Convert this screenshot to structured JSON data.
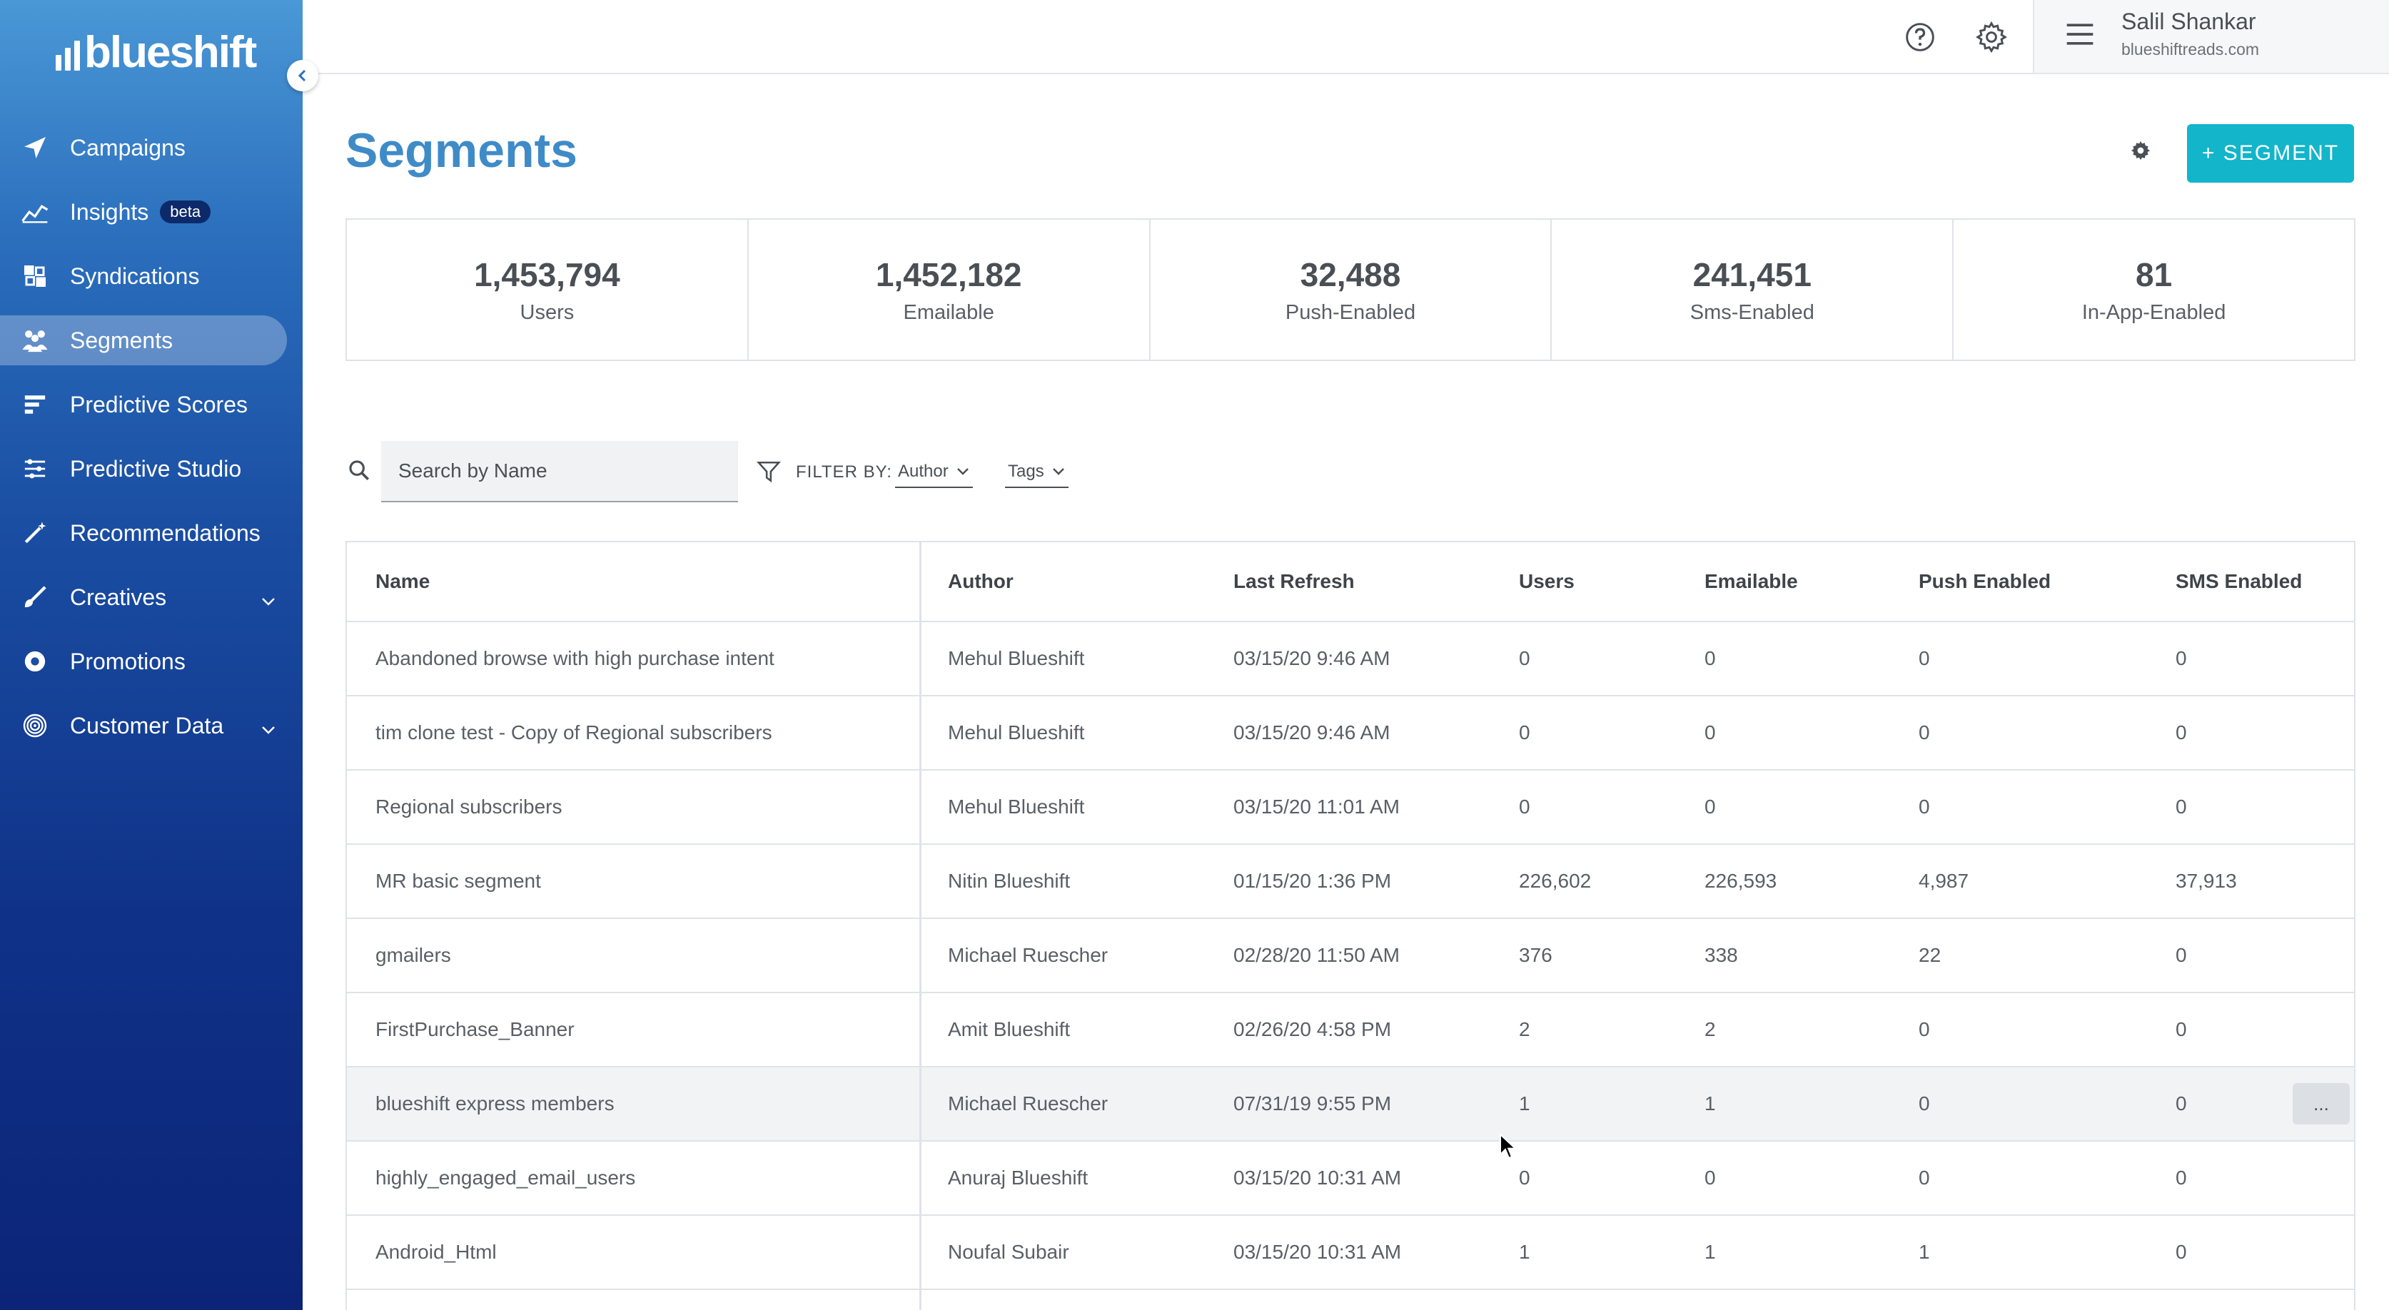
{
  "brand": {
    "logo_text": "blueshift"
  },
  "sidebar": {
    "items": [
      {
        "label": "Campaigns",
        "icon": "paper-plane-icon"
      },
      {
        "label": "Insights",
        "icon": "line-chart-icon",
        "badge": "beta"
      },
      {
        "label": "Syndications",
        "icon": "syndications-icon"
      },
      {
        "label": "Segments",
        "icon": "users-group-icon",
        "active": true
      },
      {
        "label": "Predictive Scores",
        "icon": "bars-icon"
      },
      {
        "label": "Predictive Studio",
        "icon": "sliders-icon"
      },
      {
        "label": "Recommendations",
        "icon": "magic-wand-icon"
      },
      {
        "label": "Creatives",
        "icon": "brush-icon",
        "expandable": true
      },
      {
        "label": "Promotions",
        "icon": "gear-badge-icon"
      },
      {
        "label": "Customer Data",
        "icon": "fingerprint-icon",
        "expandable": true
      }
    ]
  },
  "header": {
    "user_name": "Salil Shankar",
    "user_domain": "blueshiftreads.com"
  },
  "page": {
    "title": "Segments",
    "add_button": "+ SEGMENT"
  },
  "stats": [
    {
      "value": "1,453,794",
      "label": "Users"
    },
    {
      "value": "1,452,182",
      "label": "Emailable"
    },
    {
      "value": "32,488",
      "label": "Push-Enabled"
    },
    {
      "value": "241,451",
      "label": "Sms-Enabled"
    },
    {
      "value": "81",
      "label": "In-App-Enabled"
    }
  ],
  "filters": {
    "search_placeholder": "Search by Name",
    "filter_by_label": "FILTER BY:",
    "author_label": "Author",
    "tags_label": "Tags"
  },
  "table": {
    "columns": [
      "Name",
      "Author",
      "Last Refresh",
      "Users",
      "Emailable",
      "Push Enabled",
      "SMS Enabled"
    ],
    "rows": [
      {
        "name": "Abandoned browse with high purchase intent",
        "author": "Mehul Blueshift",
        "refresh": "03/15/20 9:46 AM",
        "users": "0",
        "emailable": "0",
        "push": "0",
        "sms": "0"
      },
      {
        "name": "tim clone test - Copy of Regional subscribers",
        "author": "Mehul Blueshift",
        "refresh": "03/15/20 9:46 AM",
        "users": "0",
        "emailable": "0",
        "push": "0",
        "sms": "0"
      },
      {
        "name": "Regional subscribers",
        "author": "Mehul Blueshift",
        "refresh": "03/15/20 11:01 AM",
        "users": "0",
        "emailable": "0",
        "push": "0",
        "sms": "0"
      },
      {
        "name": "MR basic segment",
        "author": "Nitin Blueshift",
        "refresh": "01/15/20 1:36 PM",
        "users": "226,602",
        "emailable": "226,593",
        "push": "4,987",
        "sms": "37,913"
      },
      {
        "name": "gmailers",
        "author": "Michael Ruescher",
        "refresh": "02/28/20 11:50 AM",
        "users": "376",
        "emailable": "338",
        "push": "22",
        "sms": "0"
      },
      {
        "name": "FirstPurchase_Banner",
        "author": "Amit Blueshift",
        "refresh": "02/26/20 4:58 PM",
        "users": "2",
        "emailable": "2",
        "push": "0",
        "sms": "0"
      },
      {
        "name": "blueshift express members",
        "author": "Michael Ruescher",
        "refresh": "07/31/19 9:55 PM",
        "users": "1",
        "emailable": "1",
        "push": "0",
        "sms": "0",
        "more": "..."
      },
      {
        "name": "highly_engaged_email_users",
        "author": "Anuraj Blueshift",
        "refresh": "03/15/20 10:31 AM",
        "users": "0",
        "emailable": "0",
        "push": "0",
        "sms": "0"
      },
      {
        "name": "Android_Html",
        "author": "Noufal Subair",
        "refresh": "03/15/20 10:31 AM",
        "users": "1",
        "emailable": "1",
        "push": "1",
        "sms": "0"
      }
    ]
  },
  "colors": {
    "accent": "#3f8bc8",
    "button": "#12b5c9",
    "sidebar_top": "#4a98d6",
    "sidebar_bottom": "#0b2478"
  }
}
